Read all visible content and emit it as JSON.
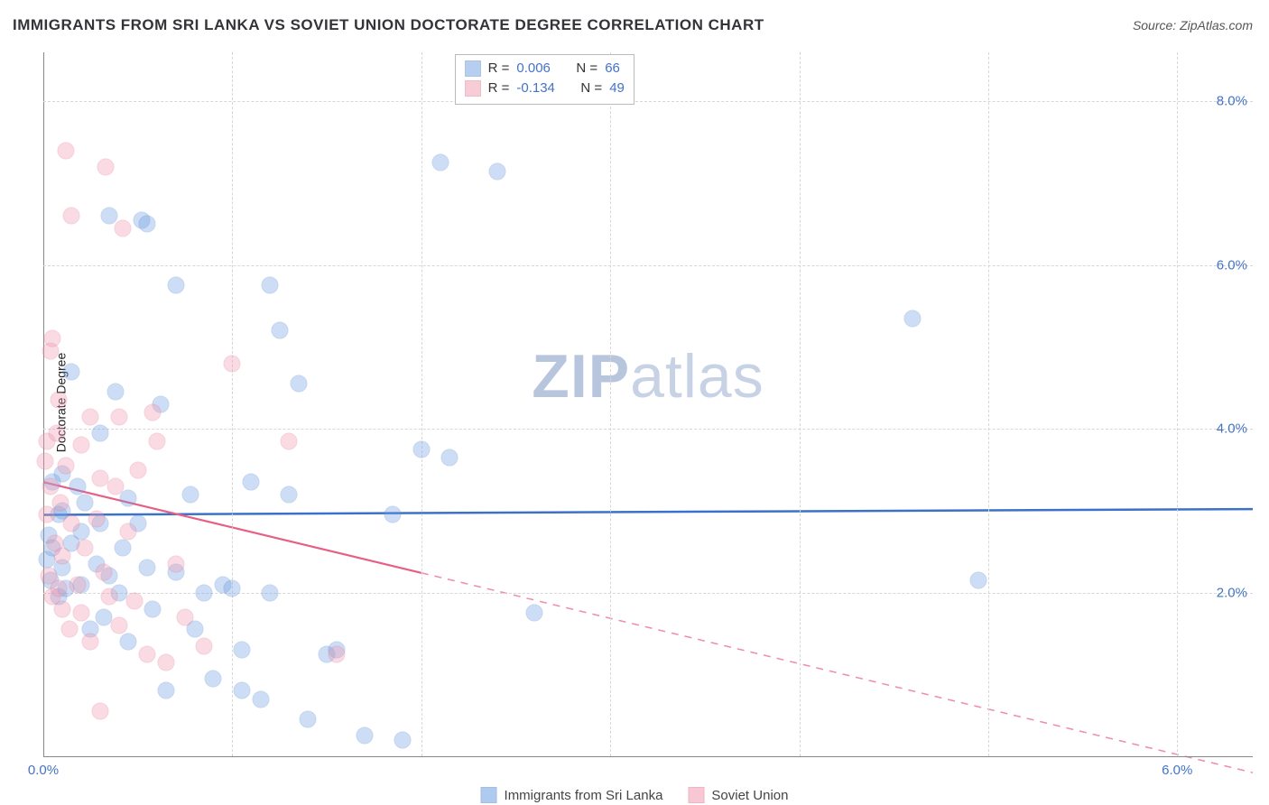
{
  "title": "IMMIGRANTS FROM SRI LANKA VS SOVIET UNION DOCTORATE DEGREE CORRELATION CHART",
  "source_label": "Source: ",
  "source_name": "ZipAtlas.com",
  "ylabel": "Doctorate Degree",
  "watermark_a": "ZIP",
  "watermark_b": "atlas",
  "chart": {
    "type": "scatter",
    "background_color": "#ffffff",
    "grid_color": "#d7d7d7",
    "axis_color": "#888888",
    "xlim": [
      0.0,
      6.4
    ],
    "ylim": [
      0.0,
      8.6
    ],
    "xticks": [
      0.0,
      6.0
    ],
    "yticks": [
      2.0,
      4.0,
      6.0,
      8.0
    ],
    "xgrid": [
      1.0,
      2.0,
      3.0,
      4.0,
      5.0,
      6.0
    ],
    "tick_suffix": "%",
    "tick_color": "#4473c5",
    "tick_fontsize": 15,
    "marker_radius": 9.5,
    "marker_fill_opacity": 0.35,
    "marker_stroke_width": 1.4,
    "series": [
      {
        "key": "sri_lanka",
        "label": "Immigrants from Sri Lanka",
        "color": "#6f9fe3",
        "stroke": "#5a88cf",
        "R": "0.006",
        "N": "66",
        "trend": {
          "y_at_xmin": 2.95,
          "y_at_xmax": 3.02,
          "solid_until_x": 6.4,
          "line_color": "#3b72c9",
          "line_width": 2.5
        },
        "points": [
          [
            0.02,
            2.4
          ],
          [
            0.03,
            2.7
          ],
          [
            0.04,
            2.15
          ],
          [
            0.05,
            2.55
          ],
          [
            0.05,
            3.35
          ],
          [
            0.08,
            2.95
          ],
          [
            0.08,
            1.95
          ],
          [
            0.1,
            2.3
          ],
          [
            0.1,
            3.45
          ],
          [
            0.12,
            2.05
          ],
          [
            0.15,
            2.6
          ],
          [
            0.15,
            4.7
          ],
          [
            0.18,
            3.3
          ],
          [
            0.2,
            2.1
          ],
          [
            0.2,
            2.75
          ],
          [
            0.22,
            3.1
          ],
          [
            0.25,
            1.55
          ],
          [
            0.28,
            2.35
          ],
          [
            0.3,
            3.95
          ],
          [
            0.3,
            2.85
          ],
          [
            0.32,
            1.7
          ],
          [
            0.35,
            2.2
          ],
          [
            0.38,
            4.45
          ],
          [
            0.4,
            2.0
          ],
          [
            0.42,
            2.55
          ],
          [
            0.45,
            1.4
          ],
          [
            0.45,
            3.15
          ],
          [
            0.5,
            2.85
          ],
          [
            0.52,
            6.55
          ],
          [
            0.55,
            6.5
          ],
          [
            0.55,
            2.3
          ],
          [
            0.58,
            1.8
          ],
          [
            0.62,
            4.3
          ],
          [
            0.65,
            0.8
          ],
          [
            0.7,
            5.75
          ],
          [
            0.7,
            2.25
          ],
          [
            0.78,
            3.2
          ],
          [
            0.8,
            1.55
          ],
          [
            0.85,
            2.0
          ],
          [
            0.9,
            0.95
          ],
          [
            0.95,
            2.1
          ],
          [
            1.0,
            2.05
          ],
          [
            1.05,
            0.8
          ],
          [
            1.05,
            1.3
          ],
          [
            1.1,
            3.35
          ],
          [
            1.15,
            0.7
          ],
          [
            1.2,
            5.75
          ],
          [
            1.2,
            2.0
          ],
          [
            1.25,
            5.2
          ],
          [
            1.3,
            3.2
          ],
          [
            1.35,
            4.55
          ],
          [
            1.4,
            0.45
          ],
          [
            1.5,
            1.25
          ],
          [
            1.55,
            1.3
          ],
          [
            1.7,
            0.25
          ],
          [
            1.85,
            2.95
          ],
          [
            1.9,
            0.2
          ],
          [
            2.0,
            3.75
          ],
          [
            2.1,
            7.25
          ],
          [
            2.15,
            3.65
          ],
          [
            2.4,
            7.15
          ],
          [
            2.6,
            1.75
          ],
          [
            4.6,
            5.35
          ],
          [
            4.95,
            2.15
          ],
          [
            0.35,
            6.6
          ],
          [
            0.1,
            3.0
          ]
        ]
      },
      {
        "key": "soviet",
        "label": "Soviet Union",
        "color": "#f19ab0",
        "stroke": "#e37a96",
        "R": "-0.134",
        "N": "49",
        "trend": {
          "y_at_xmin": 3.35,
          "y_at_xmax": -0.2,
          "solid_until_x": 2.0,
          "line_color": "#e85f85",
          "line_width": 2.2
        },
        "points": [
          [
            0.01,
            3.6
          ],
          [
            0.02,
            2.95
          ],
          [
            0.02,
            3.85
          ],
          [
            0.03,
            2.2
          ],
          [
            0.04,
            3.3
          ],
          [
            0.04,
            4.95
          ],
          [
            0.05,
            5.1
          ],
          [
            0.05,
            1.95
          ],
          [
            0.06,
            2.6
          ],
          [
            0.07,
            3.95
          ],
          [
            0.08,
            2.05
          ],
          [
            0.08,
            4.35
          ],
          [
            0.09,
            3.1
          ],
          [
            0.1,
            1.8
          ],
          [
            0.1,
            2.45
          ],
          [
            0.12,
            7.4
          ],
          [
            0.12,
            3.55
          ],
          [
            0.14,
            1.55
          ],
          [
            0.15,
            2.85
          ],
          [
            0.15,
            6.6
          ],
          [
            0.18,
            2.1
          ],
          [
            0.2,
            3.8
          ],
          [
            0.2,
            1.75
          ],
          [
            0.22,
            2.55
          ],
          [
            0.25,
            4.15
          ],
          [
            0.25,
            1.4
          ],
          [
            0.28,
            2.9
          ],
          [
            0.3,
            3.4
          ],
          [
            0.3,
            0.55
          ],
          [
            0.32,
            2.25
          ],
          [
            0.33,
            7.2
          ],
          [
            0.35,
            1.95
          ],
          [
            0.38,
            3.3
          ],
          [
            0.4,
            4.15
          ],
          [
            0.4,
            1.6
          ],
          [
            0.42,
            6.45
          ],
          [
            0.45,
            2.75
          ],
          [
            0.48,
            1.9
          ],
          [
            0.5,
            3.5
          ],
          [
            0.55,
            1.25
          ],
          [
            0.58,
            4.2
          ],
          [
            0.6,
            3.85
          ],
          [
            0.65,
            1.15
          ],
          [
            0.7,
            2.35
          ],
          [
            0.75,
            1.7
          ],
          [
            0.85,
            1.35
          ],
          [
            1.0,
            4.8
          ],
          [
            1.3,
            3.85
          ],
          [
            1.55,
            1.25
          ]
        ]
      }
    ],
    "legend_top": {
      "R_label": "R =",
      "N_label": "N ="
    }
  }
}
